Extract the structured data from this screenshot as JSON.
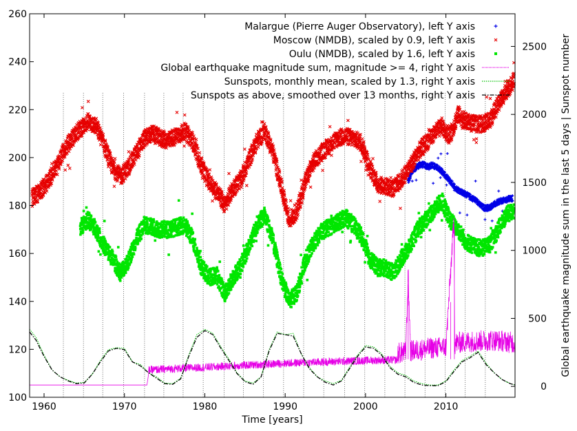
{
  "chart_data": {
    "type": "line",
    "xlabel": "Time [years]",
    "ylabel_left": "",
    "ylabel_right": "Global earthquake magnitude sum in the last 5 days | Sunspot number",
    "xlim": [
      1958.2,
      2018.6
    ],
    "ylim_left": [
      100,
      260
    ],
    "ylim_right": [
      -80,
      2740
    ],
    "x_ticks": [
      1960,
      1970,
      1980,
      1990,
      2000,
      2010
    ],
    "y_left_ticks": [
      100,
      120,
      140,
      160,
      180,
      200,
      220,
      240,
      260
    ],
    "y_right_ticks": [
      0,
      500,
      1000,
      1500,
      2000,
      2500
    ],
    "grid": false,
    "legend_position": "top-right",
    "solar_min_lines": [
      1962.4,
      1964.9,
      1967.3,
      1969.9,
      1972.5,
      1974.9,
      1977.3,
      1979.8,
      1982.4,
      1984.8,
      1987.3,
      1989.8,
      1992.3,
      1994.8,
      1997.4,
      1999.9,
      2002.4,
      2004.9,
      2007.4,
      2009.9,
      2012.4,
      2014.9
    ],
    "series": [
      {
        "name": "Malargue (Pierre Auger Observatory), left Y axis",
        "axis": "left",
        "marker": "plus",
        "color": "#0000e6",
        "x": [
          2005.3,
          2005.8,
          2006.3,
          2006.8,
          2007.3,
          2007.8,
          2008.3,
          2008.8,
          2009.3,
          2009.8,
          2010.3,
          2010.8,
          2011.3,
          2011.8,
          2012.3,
          2012.8,
          2013.3,
          2013.8,
          2014.3,
          2014.8,
          2015.3,
          2015.8,
          2016.3,
          2016.8,
          2017.3,
          2017.8,
          2018.3
        ],
        "y": [
          190,
          194,
          196,
          197,
          197,
          196,
          197,
          196,
          195,
          193,
          191,
          189,
          187,
          186,
          185,
          184,
          183,
          182,
          180,
          179,
          179,
          180,
          181,
          182,
          182,
          183,
          183
        ]
      },
      {
        "name": "Moscow (NMDB), scaled by 0.9, left Y axis",
        "axis": "left",
        "marker": "cross",
        "color": "#e60000",
        "x": [
          1958.5,
          1959.5,
          1960.5,
          1961.5,
          1962.5,
          1963.5,
          1964.5,
          1965.5,
          1966.5,
          1967.5,
          1968.5,
          1969.5,
          1970.5,
          1971.5,
          1972.5,
          1973.5,
          1974.5,
          1975.5,
          1976.5,
          1977.5,
          1978.5,
          1979.5,
          1980.5,
          1981.5,
          1982.5,
          1983.5,
          1984.5,
          1985.5,
          1986.5,
          1987.5,
          1988.5,
          1989.5,
          1990.5,
          1991.5,
          1992.5,
          1993.5,
          1994.5,
          1995.5,
          1996.5,
          1997.5,
          1998.5,
          1999.5,
          2000.5,
          2001.5,
          2002.5,
          2003.5,
          2004.5,
          2005.5,
          2006.5,
          2007.5,
          2008.5,
          2009.5,
          2010.5,
          2011.5,
          2012.5,
          2013.5,
          2014.5,
          2015.5,
          2016.5,
          2017.5,
          2018.5
        ],
        "y": [
          183,
          186,
          190,
          196,
          203,
          208,
          212,
          215,
          213,
          205,
          196,
          192,
          196,
          202,
          208,
          210,
          208,
          207,
          209,
          211,
          207,
          197,
          190,
          186,
          180,
          187,
          191,
          199,
          207,
          211,
          202,
          188,
          174,
          178,
          190,
          198,
          202,
          205,
          208,
          209,
          208,
          206,
          196,
          189,
          188,
          187,
          191,
          196,
          202,
          206,
          210,
          213,
          209,
          218,
          215,
          214,
          214,
          216,
          222,
          228,
          232
        ]
      },
      {
        "name": "Oulu (NMDB), scaled by 1.6, left Y axis",
        "axis": "left",
        "marker": "square",
        "color": "#00e600",
        "x": [
          1964.5,
          1965.5,
          1966.5,
          1967.5,
          1968.5,
          1969.5,
          1970.5,
          1971.5,
          1972.5,
          1973.5,
          1974.5,
          1975.5,
          1976.5,
          1977.5,
          1978.5,
          1979.5,
          1980.5,
          1981.5,
          1982.5,
          1983.5,
          1984.5,
          1985.5,
          1986.5,
          1987.5,
          1988.5,
          1989.5,
          1990.5,
          1991.5,
          1992.5,
          1993.5,
          1994.5,
          1995.5,
          1996.5,
          1997.5,
          1998.5,
          1999.5,
          2000.5,
          2001.5,
          2002.5,
          2003.5,
          2004.5,
          2005.5,
          2006.5,
          2007.5,
          2008.5,
          2009.5,
          2010.5,
          2011.5,
          2012.5,
          2013.5,
          2014.5,
          2015.5,
          2016.5,
          2017.5,
          2018.5
        ],
        "y": [
          171,
          174,
          170,
          163,
          158,
          152,
          157,
          166,
          172,
          171,
          170,
          170,
          171,
          172,
          166,
          155,
          150,
          151,
          143,
          150,
          155,
          163,
          172,
          176,
          165,
          150,
          140,
          144,
          157,
          164,
          169,
          171,
          173,
          175,
          172,
          167,
          158,
          154,
          154,
          152,
          158,
          163,
          170,
          174,
          178,
          182,
          174,
          170,
          165,
          163,
          162,
          164,
          170,
          176,
          178
        ]
      },
      {
        "name": "Global earthquake magnitude sum, magnitude >= 4, right Y axis",
        "axis": "right",
        "style": "line",
        "color": "#e600e6",
        "x": [
          1958.2,
          1972.8,
          1973.0,
          1976,
          1980,
          1985,
          1990,
          1995,
          2000,
          2004,
          2005,
          2005.3,
          2005.6,
          2008,
          2010,
          2011.0,
          2011.1,
          2011.3,
          2013,
          2016,
          2018.6
        ],
        "y": [
          10,
          10,
          90,
          100,
          110,
          125,
          140,
          150,
          160,
          165,
          170,
          750,
          180,
          200,
          210,
          1150,
          230,
          240,
          250,
          260,
          240
        ]
      },
      {
        "name": "Sunspots, monthly mean, scaled by 1.3, right Y axis",
        "axis": "right",
        "style": "dotted",
        "color": "#00c000",
        "x": [
          1958.2,
          1959,
          1960,
          1961,
          1962,
          1963,
          1964,
          1965,
          1966,
          1967,
          1968,
          1969,
          1970,
          1971,
          1972,
          1973,
          1974,
          1975,
          1976,
          1977,
          1978,
          1979,
          1980,
          1981,
          1982,
          1983,
          1984,
          1985,
          1986,
          1987,
          1988,
          1989,
          1990,
          1991,
          1992,
          1993,
          1994,
          1995,
          1996,
          1997,
          1998,
          1999,
          2000,
          2001,
          2002,
          2003,
          2004,
          2005,
          2006,
          2007,
          2008,
          2009,
          2010,
          2011,
          2012,
          2013,
          2014,
          2015,
          2016,
          2017,
          2018,
          2018.6
        ],
        "y": [
          420,
          360,
          230,
          120,
          70,
          45,
          25,
          30,
          90,
          190,
          270,
          285,
          280,
          180,
          160,
          100,
          70,
          25,
          20,
          60,
          230,
          380,
          420,
          390,
          290,
          200,
          100,
          40,
          25,
          70,
          270,
          400,
          380,
          390,
          240,
          140,
          70,
          40,
          20,
          45,
          140,
          230,
          300,
          290,
          240,
          150,
          100,
          80,
          40,
          20,
          10,
          10,
          40,
          120,
          190,
          220,
          260,
          170,
          100,
          50,
          20,
          10
        ]
      },
      {
        "name": "Sunspots as above, smoothed over 13 months, right Y axis",
        "axis": "right",
        "style": "dashdot",
        "color": "#000000",
        "x": [
          1958.2,
          1959,
          1960,
          1961,
          1962,
          1963,
          1964,
          1965,
          1966,
          1967,
          1968,
          1969,
          1970,
          1971,
          1972,
          1973,
          1974,
          1975,
          1976,
          1977,
          1978,
          1979,
          1980,
          1981,
          1982,
          1983,
          1984,
          1985,
          1986,
          1987,
          1988,
          1989,
          1990,
          1991,
          1992,
          1993,
          1994,
          1995,
          1996,
          1997,
          1998,
          1999,
          2000,
          2001,
          2002,
          2003,
          2004,
          2005,
          2006,
          2007,
          2008,
          2009,
          2010,
          2011,
          2012,
          2013,
          2014,
          2015,
          2016,
          2017,
          2018,
          2018.6
        ],
        "y": [
          400,
          340,
          220,
          120,
          70,
          40,
          20,
          25,
          90,
          180,
          260,
          280,
          270,
          180,
          150,
          100,
          60,
          20,
          15,
          55,
          220,
          360,
          410,
          380,
          280,
          190,
          95,
          35,
          15,
          70,
          260,
          390,
          380,
          370,
          240,
          130,
          70,
          30,
          10,
          40,
          130,
          220,
          290,
          280,
          230,
          140,
          90,
          70,
          30,
          10,
          5,
          5,
          35,
          110,
          180,
          210,
          250,
          160,
          100,
          50,
          20,
          10
        ]
      }
    ]
  }
}
